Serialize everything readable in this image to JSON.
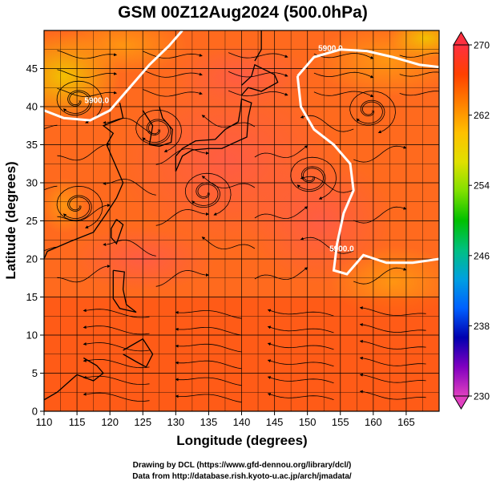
{
  "chart_data": {
    "type": "heatmap",
    "title": "GSM 00Z12Aug2024 (500.0hPa)",
    "xlabel": "Longitude (degrees)",
    "ylabel": "Latitude (degrees)",
    "xlim": [
      110,
      170
    ],
    "ylim": [
      0,
      50
    ],
    "xticks": [
      110,
      115,
      120,
      125,
      130,
      135,
      140,
      145,
      150,
      155,
      160,
      165
    ],
    "yticks": [
      0,
      5,
      10,
      15,
      20,
      25,
      30,
      35,
      40,
      45
    ],
    "grid": true,
    "field": "temperature (shading) with streamlines of wind",
    "colorbar": {
      "min": 230,
      "max": 270,
      "ticks": [
        230,
        238,
        246,
        254,
        262,
        270
      ],
      "colors": [
        "#e040c0",
        "#8000c0",
        "#0000b0",
        "#0060ff",
        "#00a0e0",
        "#00c080",
        "#00c000",
        "#80e000",
        "#e0e000",
        "#ffc000",
        "#ff8000",
        "#ff4000",
        "#ff3040"
      ]
    },
    "contours": [
      {
        "label": "5900.0",
        "points": [
          [
            110,
            39.5
          ],
          [
            113,
            38.5
          ],
          [
            117,
            38.2
          ],
          [
            120,
            39.5
          ],
          [
            123,
            42.5
          ],
          [
            126,
            45.5
          ],
          [
            129,
            48
          ],
          [
            131,
            50
          ]
        ]
      },
      {
        "label": "5900.0",
        "points": [
          [
            148.5,
            44
          ],
          [
            149,
            40
          ],
          [
            151,
            37
          ],
          [
            154,
            35
          ],
          [
            156.5,
            32.5
          ],
          [
            157,
            29
          ],
          [
            155.5,
            26
          ],
          [
            154.5,
            22
          ],
          [
            154,
            18.5
          ],
          [
            156,
            18
          ],
          [
            158.5,
            20.5
          ],
          [
            162,
            19.5
          ],
          [
            166,
            19.5
          ],
          [
            170,
            20
          ]
        ]
      },
      {
        "label": "5900.0",
        "points": [
          [
            148.5,
            44
          ],
          [
            151,
            46.5
          ],
          [
            155,
            47.5
          ],
          [
            159,
            47.3
          ],
          [
            163,
            46.5
          ],
          [
            167,
            45.5
          ],
          [
            170,
            45.2
          ]
        ]
      }
    ],
    "labels_on_contours": [
      {
        "text": "5900.0",
        "lon": 118,
        "lat": 40.5
      },
      {
        "text": "5900.0",
        "lon": 153.5,
        "lat": 47.3
      },
      {
        "text": "5900.0",
        "lon": 155.2,
        "lat": 21
      }
    ],
    "vortices": [
      [
        115,
        40.8
      ],
      [
        159.5,
        39.5
      ],
      [
        134.5,
        28.7
      ],
      [
        150.5,
        30.8
      ],
      [
        115,
        27
      ],
      [
        127,
        37
      ]
    ]
  },
  "credits": {
    "line1": "Drawing by DCL (https://www.gfd-dennou.org/library/dcl/)",
    "line2": "Data from http://database.rish.kyoto-u.ac.jp/arch/jmadata/"
  }
}
